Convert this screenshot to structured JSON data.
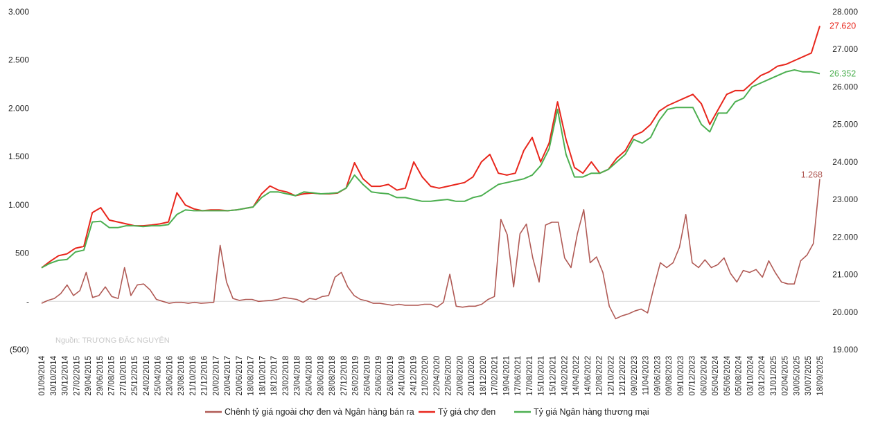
{
  "chart_data": {
    "type": "line",
    "source_note": "Nguồn: TRƯƠNG ĐẮC NGUYÊN",
    "y_left": {
      "min": -500,
      "max": 3000,
      "ticks": [
        3000,
        2500,
        2000,
        1500,
        1000,
        500,
        0,
        -500
      ],
      "tick_labels": [
        "3.000",
        "2.500",
        "2.000",
        "1.500",
        "1.000",
        "500",
        "-",
        "(500)"
      ]
    },
    "y_right": {
      "min": 19000,
      "max": 28000,
      "ticks": [
        28000,
        27000,
        26000,
        25000,
        24000,
        23000,
        22000,
        21000,
        20000,
        19000
      ],
      "tick_labels": [
        "28.000",
        "27.000",
        "26.000",
        "25.000",
        "24.000",
        "23.000",
        "22.000",
        "21.000",
        "20.000",
        "19.000"
      ]
    },
    "x_labels": [
      "01/09/2014",
      "30/10/2014",
      "30/12/2014",
      "27/02/2015",
      "29/04/2015",
      "29/06/2015",
      "27/08/2015",
      "27/10/2015",
      "25/12/2015",
      "24/02/2016",
      "25/04/2016",
      "23/06/2016",
      "23/08/2016",
      "21/10/2016",
      "21/12/2016",
      "20/02/2017",
      "20/04/2017",
      "20/06/2017",
      "18/08/2017",
      "18/10/2017",
      "18/12/2017",
      "23/02/2018",
      "23/04/2018",
      "26/04/2018",
      "28/06/2018",
      "28/08/2018",
      "27/12/2018",
      "26/02/2019",
      "26/04/2019",
      "26/06/2019",
      "26/08/2019",
      "24/10/2019",
      "24/12/2019",
      "21/02/2020",
      "22/04/2020",
      "22/06/2020",
      "20/08/2020",
      "20/10/2020",
      "18/12/2020",
      "17/02/2021",
      "19/04/2021",
      "17/06/2021",
      "17/08/2021",
      "15/10/2021",
      "15/12/2021",
      "14/02/2022",
      "14/04/2022",
      "14/06/2022",
      "12/08/2022",
      "12/10/2022",
      "12/12/2022",
      "09/02/2023",
      "11/04/2023",
      "09/06/2023",
      "09/08/2023",
      "09/10/2023",
      "07/12/2023",
      "06/02/2024",
      "05/04/2024",
      "05/06/2024",
      "05/08/2024",
      "03/10/2024",
      "03/12/2024",
      "31/01/2025",
      "02/04/2025",
      "30/05/2025",
      "30/07/2025",
      "18/09/2025"
    ],
    "series": [
      {
        "name": "Chênh tỷ giá ngoài chợ đen và Ngân hàng bán ra",
        "axis": "left",
        "color": "#b05a55",
        "values": [
          -20,
          10,
          30,
          80,
          170,
          60,
          110,
          300,
          40,
          60,
          150,
          50,
          30,
          350,
          60,
          170,
          180,
          120,
          20,
          0,
          -20,
          -10,
          -10,
          -20,
          -10,
          -20,
          -15,
          -10,
          580,
          200,
          30,
          10,
          20,
          20,
          0,
          5,
          10,
          20,
          40,
          30,
          20,
          -10,
          30,
          20,
          50,
          60,
          250,
          300,
          150,
          60,
          20,
          5,
          -20,
          -20,
          -30,
          -40,
          -30,
          -40,
          -40,
          -40,
          -30,
          -30,
          -60,
          -10,
          280,
          -50,
          -60,
          -50,
          -50,
          -30,
          20,
          50,
          850,
          690,
          150,
          700,
          800,
          450,
          200,
          790,
          820,
          820,
          450,
          350,
          700,
          950,
          400,
          460,
          300,
          -50,
          -180,
          -150,
          -130,
          -100,
          -80,
          -120,
          150,
          400,
          350,
          400,
          560,
          900,
          400,
          350,
          430,
          350,
          380,
          450,
          290,
          200,
          320,
          300,
          330,
          250,
          420,
          300,
          200,
          180,
          180,
          420,
          480,
          600,
          1268
        ],
        "end_label": "1.268"
      },
      {
        "name": "Tỷ giá chợ đen",
        "axis": "right",
        "color": "#e8261c",
        "values": [
          21180,
          21350,
          21500,
          21550,
          21700,
          21750,
          22650,
          22780,
          22450,
          22400,
          22350,
          22300,
          22300,
          22320,
          22350,
          22400,
          23180,
          22850,
          22750,
          22700,
          22720,
          22720,
          22700,
          22720,
          22760,
          22800,
          23150,
          23360,
          23250,
          23200,
          23100,
          23150,
          23170,
          23150,
          23150,
          23170,
          23300,
          23980,
          23550,
          23350,
          23350,
          23400,
          23250,
          23300,
          24000,
          23600,
          23350,
          23300,
          23350,
          23400,
          23450,
          23600,
          24000,
          24200,
          23700,
          23650,
          23700,
          24300,
          24650,
          24000,
          24500,
          25600,
          24600,
          23850,
          23700,
          24000,
          23700,
          23800,
          24100,
          24300,
          24700,
          24800,
          25000,
          25350,
          25500,
          25600,
          25700,
          25800,
          25550,
          25000,
          25400,
          25800,
          25900,
          25900,
          26100,
          26300,
          26400,
          26550,
          26600,
          26700,
          26800,
          26900,
          27620
        ],
        "end_label": "27.620"
      },
      {
        "name": "Tỷ giá Ngân hàng thương mại",
        "axis": "right",
        "color": "#4caf50",
        "values": [
          21180,
          21300,
          21380,
          21400,
          21600,
          21650,
          22400,
          22420,
          22250,
          22250,
          22300,
          22300,
          22280,
          22300,
          22300,
          22330,
          22600,
          22720,
          22700,
          22700,
          22700,
          22700,
          22700,
          22720,
          22760,
          22800,
          23050,
          23200,
          23200,
          23150,
          23100,
          23200,
          23180,
          23150,
          23160,
          23180,
          23300,
          23650,
          23400,
          23200,
          23170,
          23150,
          23050,
          23050,
          23000,
          22950,
          22950,
          22980,
          23000,
          22950,
          22950,
          23050,
          23100,
          23250,
          23400,
          23450,
          23500,
          23550,
          23650,
          23900,
          24350,
          25400,
          24200,
          23600,
          23600,
          23700,
          23700,
          23800,
          24000,
          24200,
          24600,
          24500,
          24650,
          25100,
          25400,
          25450,
          25450,
          25450,
          25000,
          24800,
          25300,
          25300,
          25600,
          25700,
          26000,
          26100,
          26200,
          26300,
          26400,
          26450,
          26400,
          26400,
          26352
        ],
        "end_label": "26.352"
      }
    ],
    "legend": [
      {
        "label": "Chênh tỷ giá ngoài chợ đen và Ngân hàng bán ra",
        "color": "#b05a55"
      },
      {
        "label": "Tỷ giá chợ đen",
        "color": "#e8261c"
      },
      {
        "label": "Tỷ giá Ngân hàng thương mại",
        "color": "#4caf50"
      }
    ],
    "legend_position": "bottom",
    "grid": false
  }
}
